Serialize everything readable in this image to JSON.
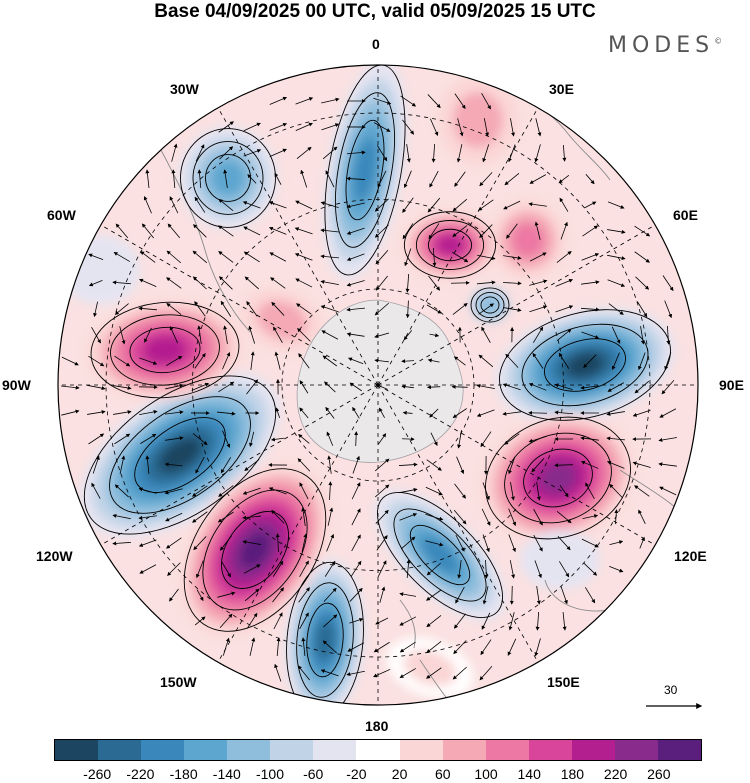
{
  "title": "Base 04/09/2025 00 UTC, valid 05/09/2025 15 UTC",
  "brand": "MODES",
  "brand_mark": "©",
  "longitude_labels": {
    "top": "0",
    "top_left": "30W",
    "top_right": "30E",
    "left_upper": "60W",
    "right_upper": "60E",
    "left": "90W",
    "right": "90E",
    "left_lower": "120W",
    "right_lower": "120E",
    "bottom_left": "150W",
    "bottom_right": "150E",
    "bottom": "180"
  },
  "reference_vector": {
    "label": "30"
  },
  "colorbar": {
    "labels": [
      "-260",
      "-220",
      "-180",
      "-140",
      "-100",
      "-60",
      "-20",
      "20",
      "60",
      "100",
      "140",
      "180",
      "220",
      "260"
    ],
    "colors": [
      "#1b4560",
      "#2a6a93",
      "#3a88bb",
      "#5da6cf",
      "#8fbedd",
      "#c0d3e7",
      "#e4e4f1",
      "#ffffff",
      "#fbd6d6",
      "#f4a9b5",
      "#ec78a3",
      "#d9459a",
      "#b31f8f",
      "#882b8d",
      "#5a1e7c"
    ]
  },
  "map_features": {
    "anomaly_lobes": [
      {
        "sign": "negative",
        "intensity": "strong",
        "location": "90E"
      },
      {
        "sign": "negative",
        "intensity": "strong",
        "location": "110W"
      },
      {
        "sign": "negative",
        "intensity": "moderate",
        "location": "165E"
      },
      {
        "sign": "negative",
        "intensity": "moderate",
        "location": "170W"
      },
      {
        "sign": "negative",
        "intensity": "moderate",
        "location": "0"
      },
      {
        "sign": "positive",
        "intensity": "strong",
        "location": "130W"
      },
      {
        "sign": "positive",
        "intensity": "strong",
        "location": "115E"
      },
      {
        "sign": "positive",
        "intensity": "moderate",
        "location": "80W"
      },
      {
        "sign": "positive",
        "intensity": "moderate",
        "location": "45E"
      }
    ]
  }
}
